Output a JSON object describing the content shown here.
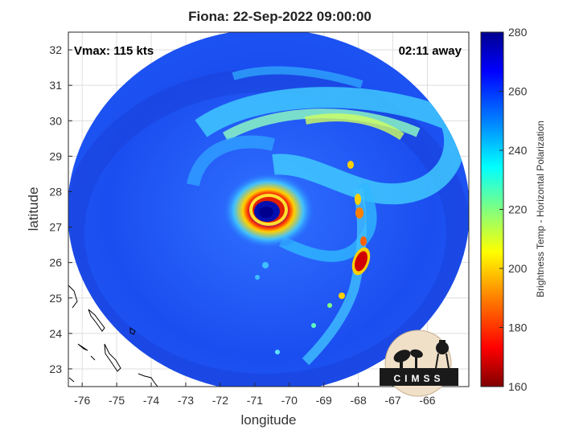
{
  "title": "Fiona: 22-Sep-2022 09:00:00",
  "overlay": {
    "vmax": "Vmax: 115 kts",
    "eta": "02:11 away"
  },
  "map": {
    "xlabel": "longitude",
    "ylabel": "latitude",
    "x_ticks": [
      "-76",
      "-75",
      "-74",
      "-73",
      "-72",
      "-71",
      "-70",
      "-69",
      "-68",
      "-67",
      "-66"
    ],
    "y_ticks": [
      "32",
      "31",
      "30",
      "29",
      "28",
      "27",
      "26",
      "25",
      "24",
      "23"
    ],
    "xlim": [
      -76.4,
      -64.8
    ],
    "ylim": [
      22.5,
      32.5
    ],
    "storm_center": {
      "lon": -70.9,
      "lat": 27.45
    }
  },
  "colorbar": {
    "label": "Brightness Temp - Horizontal Polarization",
    "ticks": [
      "280",
      "260",
      "240",
      "220",
      "200",
      "180",
      "160"
    ],
    "range": [
      160,
      280
    ],
    "colormap": "jet",
    "colors": [
      "#7f0000",
      "#ff0000",
      "#ff8000",
      "#ffff00",
      "#80ff80",
      "#00ffff",
      "#0080ff",
      "#0000ff",
      "#00008f"
    ]
  },
  "logo": {
    "text": "CIMSS"
  }
}
